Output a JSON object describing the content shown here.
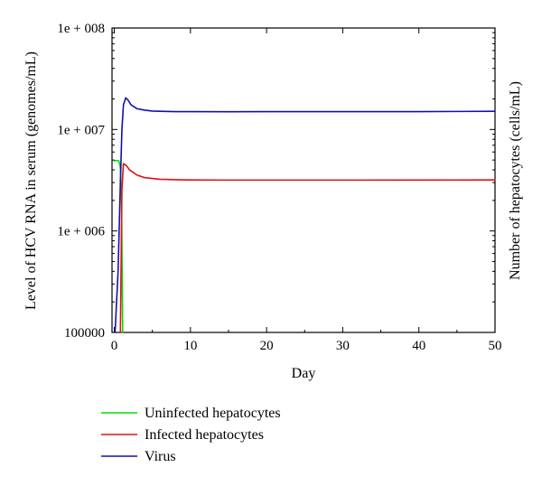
{
  "chart_data": {
    "type": "line",
    "xlabel": "Day",
    "ylabel": "Level of HCV RNA in serum (genomes/mL)",
    "y2label": "Number of hepatocytes (cells/mL)",
    "y_scale": "log",
    "xlim": [
      -0.3,
      50
    ],
    "ylim": [
      100000,
      100000000
    ],
    "x_ticks": [
      0,
      10,
      20,
      30,
      40,
      50
    ],
    "x_tick_labels": [
      "0",
      "10",
      "20",
      "30",
      "40",
      "50"
    ],
    "y_ticks": [
      100000,
      1000000,
      10000000,
      100000000
    ],
    "y_tick_labels": [
      "100000",
      "1e + 006",
      "1e + 007",
      "1e + 008"
    ],
    "grid": false,
    "legend_position": "bottom-left",
    "series": [
      {
        "name": "Uninfected hepatocytes",
        "color": "#00dd00",
        "x": [
          0.0,
          0.3,
          0.6,
          0.8,
          0.95,
          1.05,
          1.1
        ],
        "y": [
          4900000,
          4950000,
          4900000,
          4200000,
          2000000,
          300000,
          100000
        ]
      },
      {
        "name": "Infected hepatocytes",
        "color": "#dd1111",
        "x": [
          0.8,
          1.0,
          1.2,
          1.6,
          2.0,
          3.0,
          4.0,
          6.0,
          8.0,
          10.0,
          15.0,
          20.0,
          30.0,
          40.0,
          50.0
        ],
        "y": [
          100000,
          2500000,
          4600000,
          4400000,
          4000000,
          3550000,
          3350000,
          3230000,
          3200000,
          3180000,
          3170000,
          3170000,
          3170000,
          3175000,
          3180000
        ]
      },
      {
        "name": "Virus",
        "color": "#1111aa",
        "x": [
          0.1,
          0.5,
          0.8,
          1.0,
          1.2,
          1.5,
          1.8,
          2.2,
          3.0,
          4.0,
          5.0,
          6.0,
          8.0,
          10.0,
          15.0,
          20.0,
          30.0,
          40.0,
          50.0
        ],
        "y": [
          100000,
          400000,
          3000000,
          10000000,
          17500000,
          20500000,
          19500000,
          17500000,
          16000000,
          15500000,
          15200000,
          15100000,
          15000000,
          15000000,
          14950000,
          15000000,
          15000000,
          15000000,
          15100000
        ]
      }
    ]
  }
}
